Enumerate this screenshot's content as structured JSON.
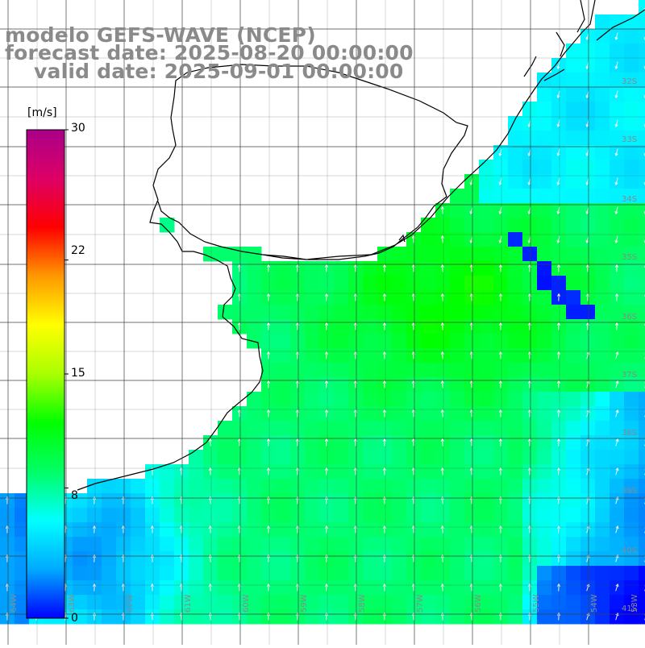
{
  "title": {
    "line1": "modelo GEFS-WAVE (NCEP)",
    "line2": "forecast date: 2025-08-20 00:00:00",
    "line3": "valid date: 2025-09-01 00:00:00"
  },
  "colorbar": {
    "unit": "[m/s]",
    "ticks": [
      "30",
      "22",
      "15",
      "8",
      "0"
    ],
    "tick_values": [
      30,
      22,
      15,
      8,
      0
    ],
    "min": 0,
    "max": 30,
    "colors": [
      "#0000ff",
      "#00aaff",
      "#00ffff",
      "#00ff66",
      "#00ff00",
      "#aaff00",
      "#ffff00",
      "#ff9900",
      "#ff0000",
      "#dd0066",
      "#aa0088"
    ]
  },
  "map": {
    "lat_labels": [
      "32S",
      "33S",
      "34S",
      "35S",
      "36S",
      "37S",
      "38S",
      "39S",
      "40S",
      "41S"
    ],
    "lon_labels": [
      "64W",
      "63W",
      "62W",
      "61W",
      "60W",
      "59W",
      "58W",
      "57W",
      "56W",
      "55W",
      "54W",
      "53W"
    ],
    "grid_visible": true,
    "field": "wind speed with direction arrows",
    "colors": {
      "land": "#ffffff",
      "coast": "#000000",
      "grid": "#404040",
      "arrow": "#ffffff",
      "label": "#8a8a8a"
    }
  }
}
